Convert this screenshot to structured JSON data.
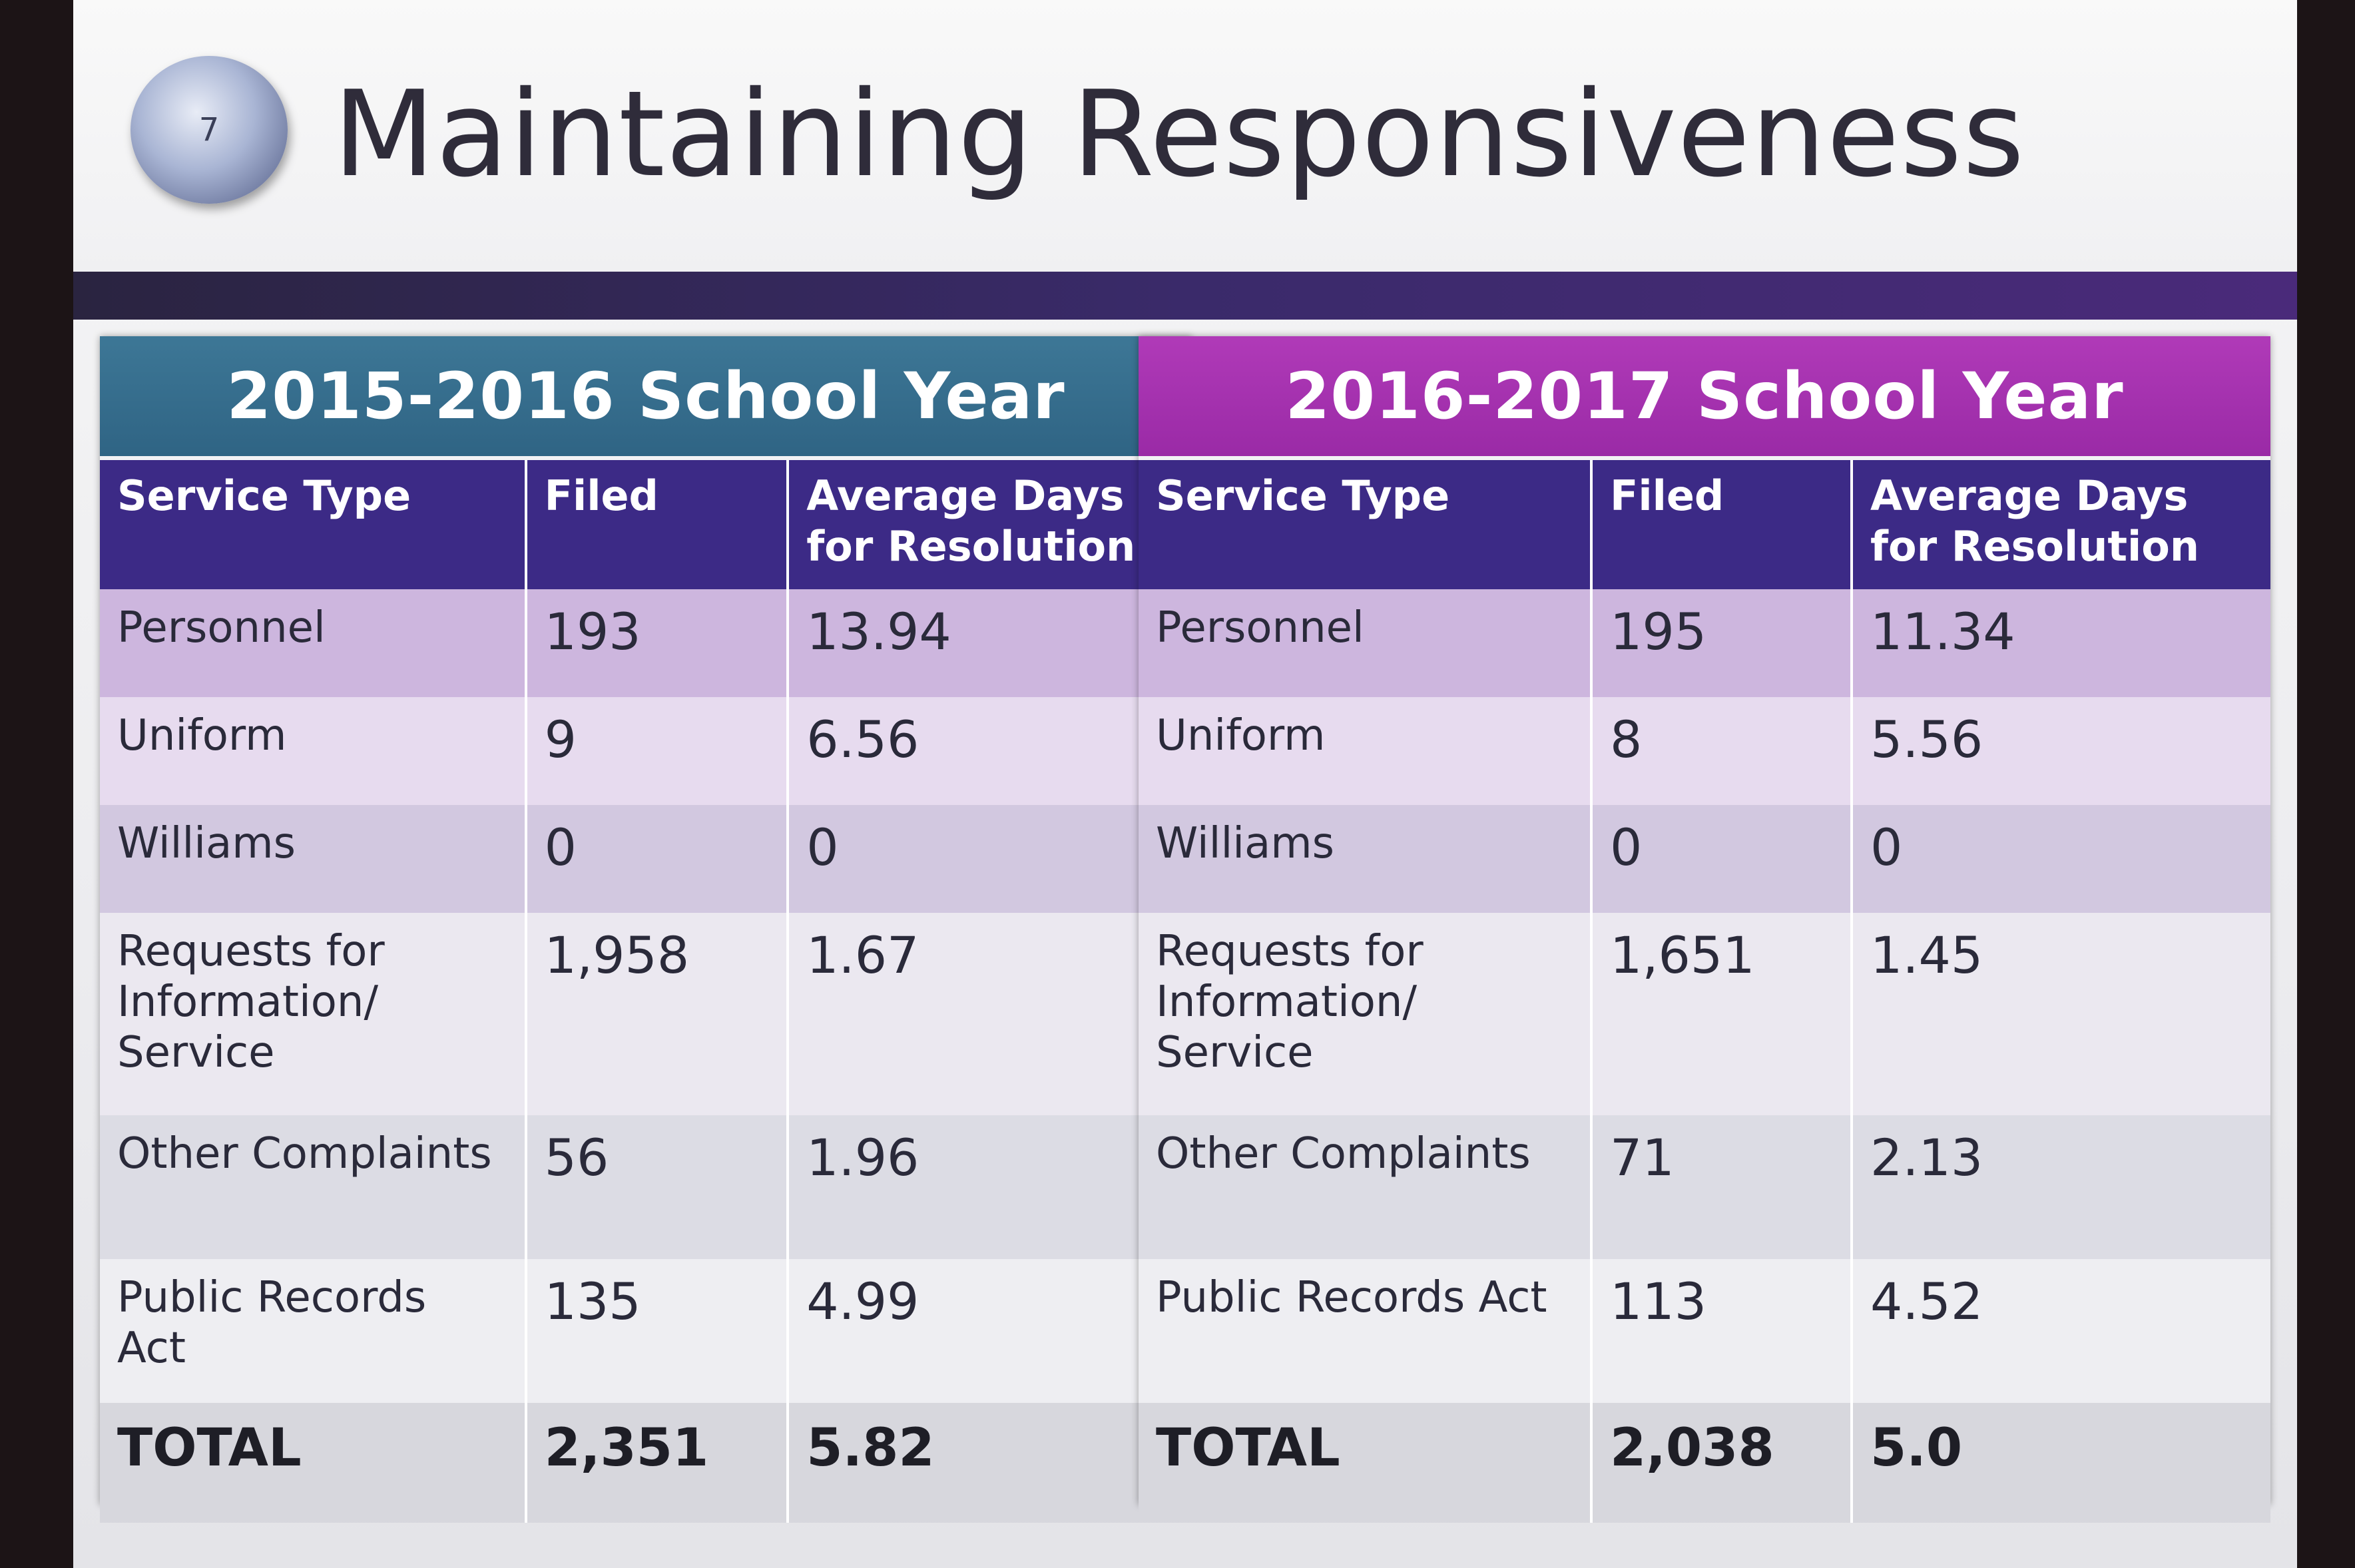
{
  "slide": {
    "number": "7",
    "title": "Maintaining Responsiveness"
  },
  "tables": [
    {
      "header": "2015-2016 School Year",
      "columns": [
        "Service Type",
        "Filed",
        "Average Days for Resolution"
      ],
      "rows": [
        {
          "service": "Personnel",
          "filed": "193",
          "avg": "13.94"
        },
        {
          "service": "Uniform",
          "filed": "9",
          "avg": "6.56"
        },
        {
          "service": "Williams",
          "filed": "0",
          "avg": "0"
        },
        {
          "service": "Requests for Information/ Service",
          "filed": "1,958",
          "avg": "1.67"
        },
        {
          "service": "Other Complaints",
          "filed": "56",
          "avg": "1.96"
        },
        {
          "service": "Public Records Act",
          "filed": "135",
          "avg": "4.99"
        }
      ],
      "total": {
        "label": "TOTAL",
        "filed": "2,351",
        "avg": "5.82"
      }
    },
    {
      "header": "2016-2017 School Year",
      "columns": [
        "Service Type",
        "Filed",
        "Average Days for Resolution"
      ],
      "rows": [
        {
          "service": "Personnel",
          "filed": "195",
          "avg": "11.34"
        },
        {
          "service": "Uniform",
          "filed": "8",
          "avg": "5.56"
        },
        {
          "service": "Williams",
          "filed": "0",
          "avg": "0"
        },
        {
          "service": "Requests for Information/ Service",
          "filed": "1,651",
          "avg": "1.45"
        },
        {
          "service": "Other Complaints",
          "filed": "71",
          "avg": "2.13"
        },
        {
          "service": "Public Records Act",
          "filed": "113",
          "avg": "4.52"
        }
      ],
      "total": {
        "label": "TOTAL",
        "filed": "2,038",
        "avg": "5.0"
      }
    }
  ],
  "colors": {
    "left_header": "#2f6484",
    "right_header": "#9a2aa6",
    "column_header": "#3c2a86"
  }
}
